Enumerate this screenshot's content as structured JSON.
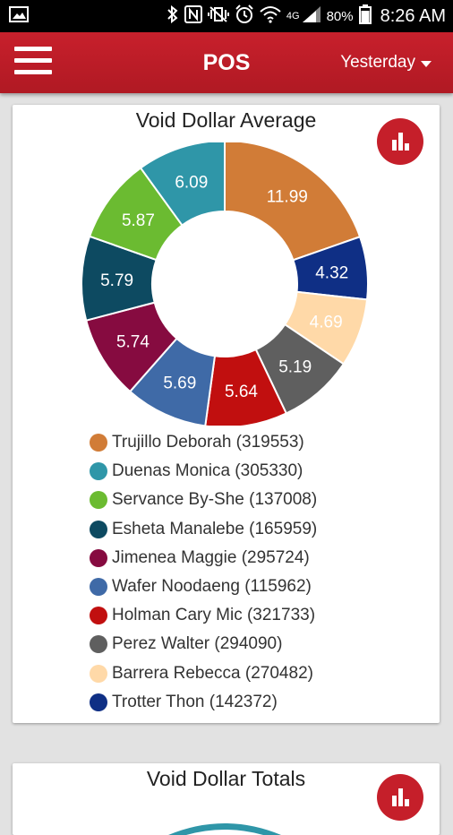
{
  "status_bar": {
    "battery": "80%",
    "network": "4G",
    "time": "8:26 AM"
  },
  "appbar": {
    "title": "POS",
    "period": "Yesterday"
  },
  "cards": [
    {
      "title": "Void Dollar Average"
    },
    {
      "title": "Void Dollar Totals"
    }
  ],
  "chart_data": {
    "type": "pie",
    "title": "Void Dollar Average",
    "donut": true,
    "legend_position": "bottom",
    "slices": [
      {
        "name": "Trujillo Deborah (319553)",
        "value": 11.99,
        "label": "11.99",
        "color": "#d17c37",
        "label_color": "#ffffff"
      },
      {
        "name": "Trotter Thon (142372)",
        "value": 4.32,
        "label": "4.32",
        "color": "#0f2f85",
        "label_color": "#ffffff"
      },
      {
        "name": "Barrera Rebecca (270482)",
        "value": 4.69,
        "label": "4.69",
        "color": "#ffd9a8",
        "label_color": "#ffffff"
      },
      {
        "name": "Perez Walter (294090)",
        "value": 5.19,
        "label": "5.19",
        "color": "#5f5f5f",
        "label_color": "#ffffff"
      },
      {
        "name": "Holman Cary Mic (321733)",
        "value": 5.64,
        "label": "5.64",
        "color": "#c10f0f",
        "label_color": "#ffffff"
      },
      {
        "name": "Wafer Noodaeng (115962)",
        "value": 5.69,
        "label": "5.69",
        "color": "#3f6aa7",
        "label_color": "#ffffff"
      },
      {
        "name": "Jimenea Maggie (295724)",
        "value": 5.74,
        "label": "5.74",
        "color": "#860b40",
        "label_color": "#ffffff"
      },
      {
        "name": "Esheta Manalebe (165959)",
        "value": 5.79,
        "label": "5.79",
        "color": "#0d4a61",
        "label_color": "#ffffff"
      },
      {
        "name": "Servance By-She (137008)",
        "value": 5.87,
        "label": "5.87",
        "color": "#6bbb31",
        "label_color": "#ffffff"
      },
      {
        "name": "Duenas Monica (305330)",
        "value": 6.09,
        "label": "6.09",
        "color": "#2f96a8",
        "label_color": "#ffffff"
      }
    ],
    "legend_order": [
      "Trujillo Deborah (319553)",
      "Duenas Monica (305330)",
      "Servance By-She (137008)",
      "Esheta Manalebe (165959)",
      "Jimenea Maggie (295724)",
      "Wafer Noodaeng (115962)",
      "Holman Cary Mic (321733)",
      "Perez Walter (294090)",
      "Barrera Rebecca (270482)",
      "Trotter Thon (142372)"
    ]
  },
  "icons": {
    "menu": "hamburger-icon",
    "period_caret": "caret-down-icon",
    "chart_toggle": "bar-chart-icon"
  }
}
